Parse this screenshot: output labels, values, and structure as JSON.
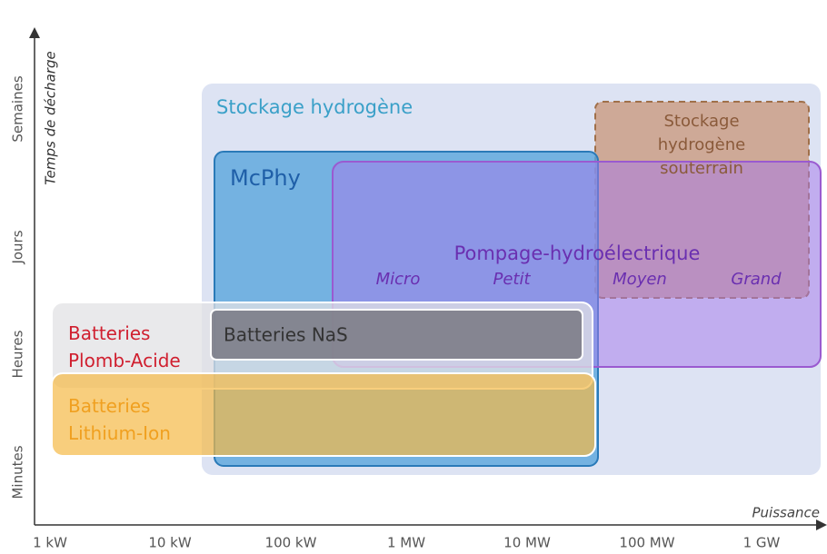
{
  "axes": {
    "y_title": "Temps de décharge",
    "x_title": "Puissance",
    "y_labels": [
      "Semaines",
      "Jours",
      "Heures",
      "Minutes"
    ],
    "x_labels": [
      "1 kW",
      "10 kW",
      "100 kW",
      "1 MW",
      "10 MW",
      "100 MW",
      "1 GW"
    ]
  },
  "regions": [
    {
      "label": "Stockage hydrogène"
    },
    {
      "label": "Stockage hydrogène souterrain"
    },
    {
      "label": "McPhy"
    },
    {
      "label": "Pompage-hydroélectrique",
      "sublabels": [
        "Micro",
        "Petit",
        "Moyen",
        "Grand"
      ]
    },
    {
      "label": "Batteries Plomb-Acide"
    },
    {
      "label": "Batteries NaS"
    },
    {
      "label": "Batteries Lithium-Ion"
    }
  ]
}
